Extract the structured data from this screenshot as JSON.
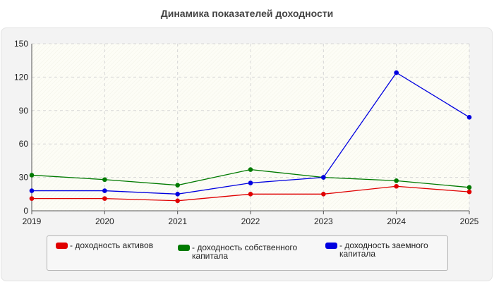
{
  "chart_data": {
    "type": "line",
    "title": "Динамика показателей доходности",
    "x": [
      "2019",
      "2020",
      "2021",
      "2022",
      "2023",
      "2024",
      "2025"
    ],
    "yticks": [
      "0",
      "30",
      "60",
      "90",
      "120",
      "150"
    ],
    "ylim": [
      0,
      150
    ],
    "grid": true,
    "legend_position": "bottom",
    "series": [
      {
        "name": "- доходность активов",
        "color": "#e00000",
        "values": [
          11,
          11,
          9,
          15,
          15,
          22,
          17
        ]
      },
      {
        "name": "- доходность собственного\nкапитала",
        "color": "#007a00",
        "values": [
          32,
          28,
          23,
          37,
          30,
          27,
          21
        ]
      },
      {
        "name": "- доходность заемного\nкапитала",
        "color": "#0000e0",
        "values": [
          18,
          18,
          15,
          25,
          30,
          124,
          84
        ]
      }
    ]
  }
}
